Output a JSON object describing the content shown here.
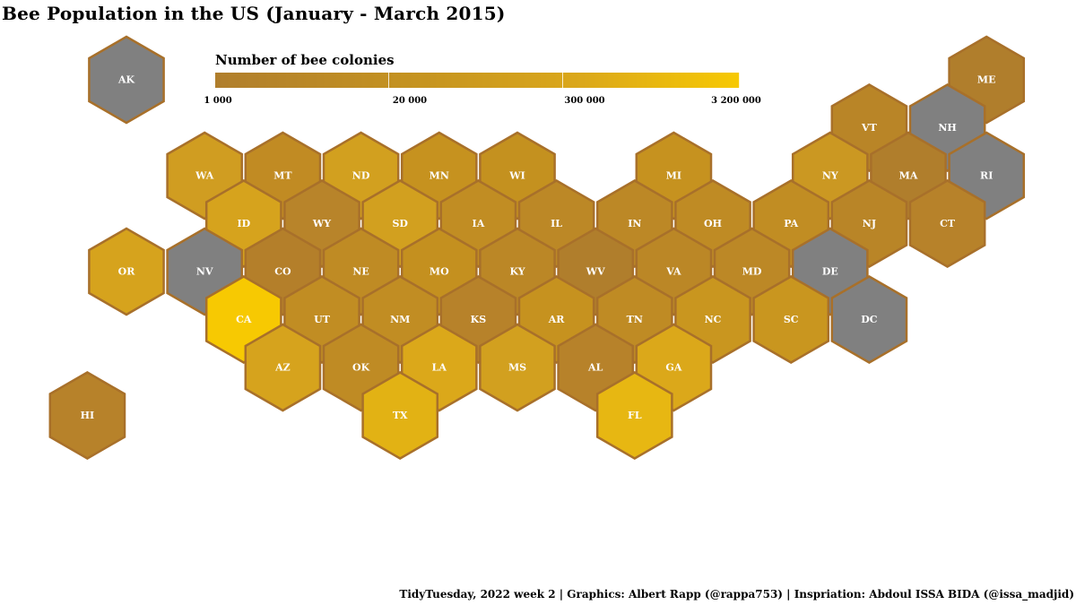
{
  "title": "Bee Population in the US (January - March 2015)",
  "legend": {
    "title": "Number of bee colonies",
    "labels": [
      "1 000",
      "20 000",
      "300 000",
      "3 200 000"
    ],
    "colors": [
      "#b07e2c",
      "#c6941f",
      "#dba81a",
      "#f7c902"
    ],
    "no_data_color": "#808080"
  },
  "caption": "TidyTuesday, 2022 week 2 | Graphics: Albert Rapp (@rappa753) | Inspriation: Abdoul ISSA BIDA (@issa_madjid)",
  "states": [
    {
      "abbr": "AK",
      "row": 0,
      "col": 0,
      "no_data": true
    },
    {
      "abbr": "ME",
      "row": 0,
      "col": 11,
      "color": "#b07e2c"
    },
    {
      "abbr": "VT",
      "row": 1,
      "col": 9,
      "color": "#b98527"
    },
    {
      "abbr": "NH",
      "row": 1,
      "col": 10,
      "no_data": true
    },
    {
      "abbr": "WA",
      "row": 2,
      "col": 1,
      "color": "#d09d21"
    },
    {
      "abbr": "MT",
      "row": 2,
      "col": 2,
      "color": "#c18b23"
    },
    {
      "abbr": "ND",
      "row": 2,
      "col": 3,
      "color": "#d2a01f"
    },
    {
      "abbr": "MN",
      "row": 2,
      "col": 4,
      "color": "#c6921f"
    },
    {
      "abbr": "WI",
      "row": 2,
      "col": 5,
      "color": "#c4911f"
    },
    {
      "abbr": "MI",
      "row": 2,
      "col": 7,
      "color": "#c6921f"
    },
    {
      "abbr": "NY",
      "row": 2,
      "col": 9,
      "color": "#cb9822"
    },
    {
      "abbr": "MA",
      "row": 2,
      "col": 10,
      "color": "#b07e2c"
    },
    {
      "abbr": "RI",
      "row": 2,
      "col": 11,
      "no_data": true
    },
    {
      "abbr": "ID",
      "row": 3,
      "col": 1,
      "color": "#d6a31d"
    },
    {
      "abbr": "WY",
      "row": 3,
      "col": 2,
      "color": "#b8842a"
    },
    {
      "abbr": "SD",
      "row": 3,
      "col": 3,
      "color": "#d2a01f"
    },
    {
      "abbr": "IA",
      "row": 3,
      "col": 4,
      "color": "#c18d23"
    },
    {
      "abbr": "IL",
      "row": 3,
      "col": 5,
      "color": "#bc8826"
    },
    {
      "abbr": "IN",
      "row": 3,
      "col": 6,
      "color": "#bc8826"
    },
    {
      "abbr": "OH",
      "row": 3,
      "col": 7,
      "color": "#bf8b24"
    },
    {
      "abbr": "PA",
      "row": 3,
      "col": 8,
      "color": "#c18d23"
    },
    {
      "abbr": "NJ",
      "row": 3,
      "col": 9,
      "color": "#b98527"
    },
    {
      "abbr": "CT",
      "row": 3,
      "col": 10,
      "color": "#b7822a"
    },
    {
      "abbr": "OR",
      "row": 4,
      "col": 0,
      "color": "#d6a31d"
    },
    {
      "abbr": "NV",
      "row": 4,
      "col": 1,
      "no_data": true
    },
    {
      "abbr": "CO",
      "row": 4,
      "col": 2,
      "color": "#b47f2a"
    },
    {
      "abbr": "NE",
      "row": 4,
      "col": 3,
      "color": "#bf8b24"
    },
    {
      "abbr": "MO",
      "row": 4,
      "col": 4,
      "color": "#c4901f"
    },
    {
      "abbr": "KY",
      "row": 4,
      "col": 5,
      "color": "#bb8726"
    },
    {
      "abbr": "WV",
      "row": 4,
      "col": 6,
      "color": "#b07e2c"
    },
    {
      "abbr": "VA",
      "row": 4,
      "col": 7,
      "color": "#bb8726"
    },
    {
      "abbr": "MD",
      "row": 4,
      "col": 8,
      "color": "#bc8826"
    },
    {
      "abbr": "DE",
      "row": 4,
      "col": 9,
      "no_data": true
    },
    {
      "abbr": "CA",
      "row": 5,
      "col": 1,
      "color": "#f7c902"
    },
    {
      "abbr": "UT",
      "row": 5,
      "col": 2,
      "color": "#c18d23"
    },
    {
      "abbr": "NM",
      "row": 5,
      "col": 3,
      "color": "#c18d23"
    },
    {
      "abbr": "KS",
      "row": 5,
      "col": 4,
      "color": "#b7822a"
    },
    {
      "abbr": "AR",
      "row": 5,
      "col": 5,
      "color": "#c6921f"
    },
    {
      "abbr": "TN",
      "row": 5,
      "col": 6,
      "color": "#bf8b24"
    },
    {
      "abbr": "NC",
      "row": 5,
      "col": 7,
      "color": "#c9961f"
    },
    {
      "abbr": "SC",
      "row": 5,
      "col": 8,
      "color": "#c9961f"
    },
    {
      "abbr": "DC",
      "row": 5,
      "col": 9,
      "no_data": true
    },
    {
      "abbr": "AZ",
      "row": 6,
      "col": 2,
      "color": "#d6a31d"
    },
    {
      "abbr": "OK",
      "row": 6,
      "col": 3,
      "color": "#bf8b24"
    },
    {
      "abbr": "LA",
      "row": 6,
      "col": 4,
      "color": "#dba81a"
    },
    {
      "abbr": "MS",
      "row": 6,
      "col": 5,
      "color": "#d2a01f"
    },
    {
      "abbr": "AL",
      "row": 6,
      "col": 6,
      "color": "#b7822a"
    },
    {
      "abbr": "GA",
      "row": 6,
      "col": 7,
      "color": "#dba81a"
    },
    {
      "abbr": "HI",
      "row": 7,
      "col": -1,
      "color": "#b7822a"
    },
    {
      "abbr": "TX",
      "row": 7,
      "col": 3,
      "color": "#e2b214"
    },
    {
      "abbr": "FL",
      "row": 7,
      "col": 6,
      "color": "#e7b712"
    }
  ]
}
